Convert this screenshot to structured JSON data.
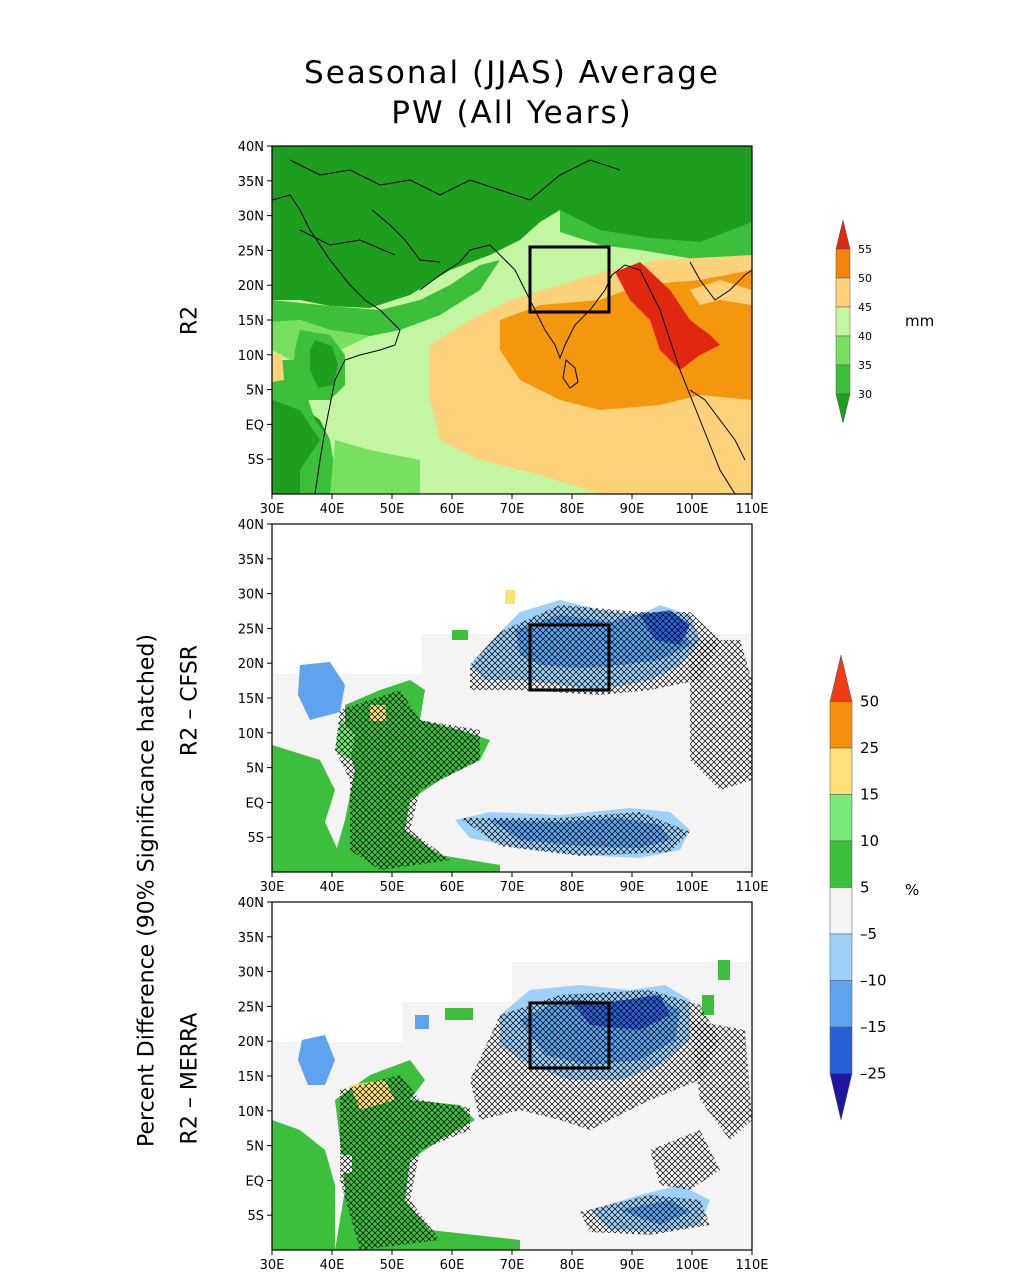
{
  "title": {
    "line1": "Seasonal (JJAS) Average",
    "line2": "PW (All Years)"
  },
  "panels": [
    {
      "id": "r2",
      "label": "R2"
    },
    {
      "id": "cfsr",
      "label": "R2 – CFSR"
    },
    {
      "id": "merra",
      "label": "R2 – MERRA"
    }
  ],
  "shared_ylabel": "Percent Difference (90% Significance hatched)",
  "axes": {
    "lat_ticks": [
      "40N",
      "35N",
      "30N",
      "25N",
      "20N",
      "15N",
      "10N",
      "5N",
      "EQ",
      "5S"
    ],
    "lon_ticks": [
      "30E",
      "40E",
      "50E",
      "60E",
      "70E",
      "80E",
      "90E",
      "100E",
      "110E"
    ]
  },
  "colorbar_pw": {
    "unit": "mm",
    "labels": [
      "55",
      "50",
      "45",
      "40",
      "35",
      "30"
    ],
    "colors": [
      "#e02810",
      "#f5820a",
      "#fdd27a",
      "#c4f5a0",
      "#78e060",
      "#3cc03c",
      "#1e9e1e"
    ]
  },
  "colorbar_pct": {
    "unit": "%",
    "labels": [
      "50",
      "25",
      "15",
      "10",
      "5",
      "–5",
      "–10",
      "–15",
      "–25"
    ],
    "colors": [
      "#f03c14",
      "#f5900f",
      "#fde07a",
      "#78e878",
      "#3cbf3c",
      "#f4f4f4",
      "#9fd0f8",
      "#5fa3ef",
      "#2860d8",
      "#1e18a0"
    ]
  },
  "colors": {
    "pw_green_dark": "#1e9e1e",
    "pw_orange": "#f5960f",
    "pct_blue": "#3c78e0",
    "pct_green": "#4cc04c",
    "box": "#000000"
  }
}
